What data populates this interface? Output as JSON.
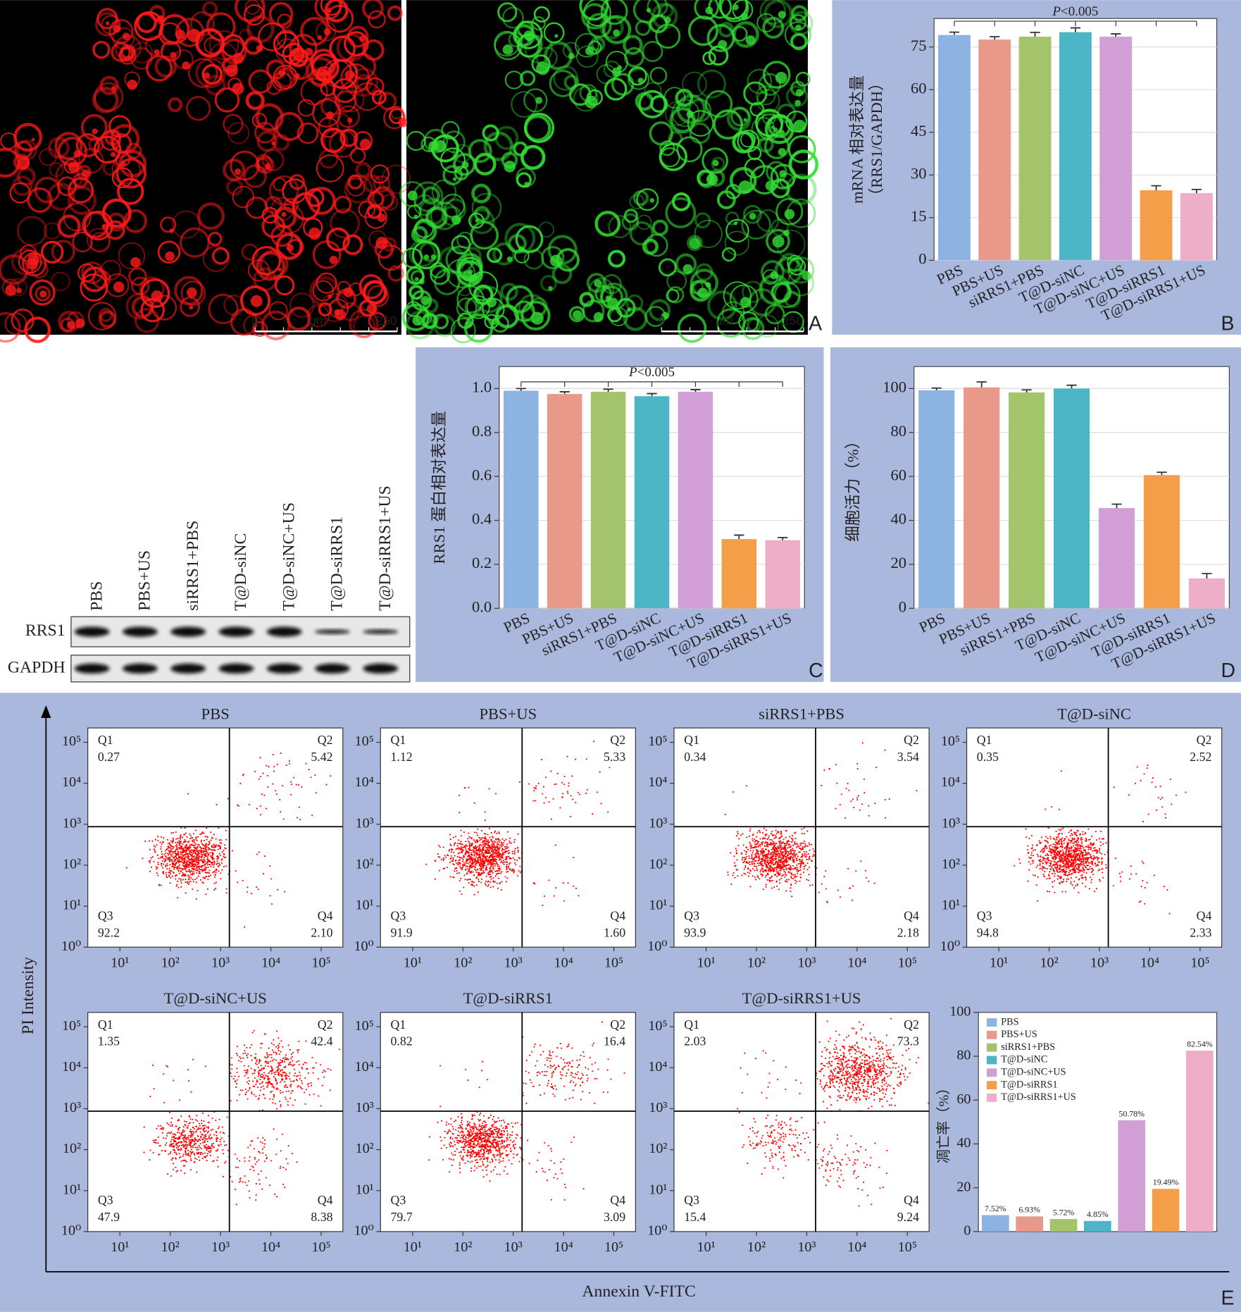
{
  "chart_data": [
    {
      "type": "bar",
      "ylabel": [
        "mRNA 相对表达量",
        "（RRS1/GAPDH）"
      ],
      "annotation": "P<0.005",
      "categories": [
        "PBS",
        "PBS+US",
        "siRRS1+PBS",
        "T@D-siNC",
        "T@D-siNC+US",
        "T@D-siRRS1",
        "T@D-siRRS1+US"
      ],
      "values": [
        79.2,
        77.6,
        78.6,
        80.2,
        78.6,
        24.6,
        23.6
      ],
      "errors": [
        1,
        1,
        1.5,
        1.5,
        1,
        1.6,
        1.3
      ],
      "colors": [
        "#8db3e2",
        "#e8998a",
        "#a3c46b",
        "#4db6c6",
        "#d19fd6",
        "#f59e49",
        "#eeaec7"
      ],
      "ylim": [
        0,
        85
      ],
      "yticks": [
        0,
        15,
        30,
        45,
        60,
        75
      ],
      "grid": true
    },
    {
      "type": "bar",
      "ylabel": [
        "RRS1 蛋白相对表达量"
      ],
      "annotation": "P<0.005",
      "categories": [
        "PBS",
        "PBS+US",
        "siRRS1+PBS",
        "T@D-siNC",
        "T@D-siNC+US",
        "T@D-siRRS1",
        "T@D-siRRS1+US"
      ],
      "values": [
        0.99,
        0.975,
        0.985,
        0.965,
        0.985,
        0.315,
        0.31
      ],
      "errors": [
        0.01,
        0.01,
        0.012,
        0.012,
        0.01,
        0.018,
        0.012
      ],
      "colors": [
        "#8db3e2",
        "#e8998a",
        "#a3c46b",
        "#4db6c6",
        "#d19fd6",
        "#f59e49",
        "#eeaec7"
      ],
      "ylim": [
        0,
        1.1
      ],
      "yticks": [
        {
          "value": 0,
          "label": "0.0"
        },
        0.2,
        0.4,
        0.6,
        0.8,
        {
          "value": 1,
          "label": "1.0"
        }
      ],
      "grid": true
    },
    {
      "type": "bar",
      "ylabel": [
        "细胞活力（%）"
      ],
      "categories": [
        "PBS",
        "PBS+US",
        "siRRS1+PBS",
        "T@D-siNC",
        "T@D-siNC+US",
        "T@D-siRRS1",
        "T@D-siRRS1+US"
      ],
      "values": [
        99.2,
        100.5,
        98.2,
        100,
        45.6,
        60.6,
        13.6
      ],
      "errors": [
        1,
        2.5,
        1.2,
        1.5,
        1.8,
        1.3,
        2.2
      ],
      "colors": [
        "#8db3e2",
        "#e8998a",
        "#a3c46b",
        "#4db6c6",
        "#d19fd6",
        "#f59e49",
        "#eeaec7"
      ],
      "ylim": [
        0,
        110
      ],
      "yticks": [
        0,
        20,
        40,
        60,
        80,
        100
      ],
      "grid": true
    },
    {
      "type": "bar",
      "ylabel": [
        "凋亡率（%）"
      ],
      "legend": "upper left",
      "categories": [
        "PBS",
        "PBS+US",
        "siRRS1+PBS",
        "T@D-siNC",
        "T@D-siNC+US",
        "T@D-siRRS1",
        "T@D-siRRS1+US"
      ],
      "values": [
        7.52,
        6.93,
        5.72,
        4.85,
        50.78,
        19.49,
        82.54
      ],
      "value_labels": [
        "7.52%",
        "6.93%",
        "5.72%",
        "4.85%",
        "50.78%",
        "19.49%",
        "82.54%"
      ],
      "colors": [
        "#8db3e2",
        "#e8998a",
        "#a3c46b",
        "#4db6c6",
        "#d19fd6",
        "#f59e49",
        "#eeaec7"
      ],
      "ylim": [
        0,
        100
      ],
      "yticks": [
        0,
        20,
        40,
        60,
        80,
        100
      ],
      "grid": false
    },
    {
      "type": "scatter",
      "title": "PBS",
      "xscale": "log",
      "yscale": "log",
      "xlim": [
        2.3,
        270000
      ],
      "ylim": [
        1,
        224000
      ],
      "gate": [
        1500,
        870
      ],
      "color": "#ff0000",
      "xticks": [
        {
          "value": 10,
          "label": "10¹"
        },
        {
          "value": 100,
          "label": "10²"
        },
        {
          "value": 1000,
          "label": "10³"
        },
        {
          "value": 10000,
          "label": "10⁴"
        },
        {
          "value": 100000,
          "label": "10⁵"
        }
      ],
      "yticks": [
        {
          "value": 1,
          "label": "10⁰"
        },
        {
          "value": 10,
          "label": "10¹"
        },
        {
          "value": 100,
          "label": "10²"
        },
        {
          "value": 1000,
          "label": "10³"
        },
        {
          "value": 10000,
          "label": "10⁴"
        },
        {
          "value": 100000,
          "label": "10⁵"
        }
      ],
      "quadrants": [
        "Q1",
        "Q2",
        "Q3",
        "Q4"
      ],
      "values": [
        0.27,
        5.42,
        92.2,
        2.1
      ],
      "value_labels": [
        "0.27",
        "5.42",
        "92.2",
        "2.10"
      ]
    },
    {
      "type": "scatter",
      "title": "PBS+US",
      "xscale": "log",
      "yscale": "log",
      "xlim": [
        2.3,
        270000
      ],
      "ylim": [
        1,
        224000
      ],
      "gate": [
        1500,
        870
      ],
      "color": "#ff0000",
      "xticks": [
        {
          "value": 10,
          "label": "10¹"
        },
        {
          "value": 100,
          "label": "10²"
        },
        {
          "value": 1000,
          "label": "10³"
        },
        {
          "value": 10000,
          "label": "10⁴"
        },
        {
          "value": 100000,
          "label": "10⁵"
        }
      ],
      "yticks": [
        {
          "value": 1,
          "label": "10⁰"
        },
        {
          "value": 10,
          "label": "10¹"
        },
        {
          "value": 100,
          "label": "10²"
        },
        {
          "value": 1000,
          "label": "10³"
        },
        {
          "value": 10000,
          "label": "10⁴"
        },
        {
          "value": 100000,
          "label": "10⁵"
        }
      ],
      "quadrants": [
        "Q1",
        "Q2",
        "Q3",
        "Q4"
      ],
      "values": [
        1.12,
        5.33,
        91.9,
        1.6
      ],
      "value_labels": [
        "1.12",
        "5.33",
        "91.9",
        "1.60"
      ]
    },
    {
      "type": "scatter",
      "title": "siRRS1+PBS",
      "xscale": "log",
      "yscale": "log",
      "xlim": [
        2.3,
        270000
      ],
      "ylim": [
        1,
        224000
      ],
      "gate": [
        1500,
        870
      ],
      "color": "#ff0000",
      "xticks": [
        {
          "value": 10,
          "label": "10¹"
        },
        {
          "value": 100,
          "label": "10²"
        },
        {
          "value": 1000,
          "label": "10³"
        },
        {
          "value": 10000,
          "label": "10⁴"
        },
        {
          "value": 100000,
          "label": "10⁵"
        }
      ],
      "yticks": [
        {
          "value": 1,
          "label": "10⁰"
        },
        {
          "value": 10,
          "label": "10¹"
        },
        {
          "value": 100,
          "label": "10²"
        },
        {
          "value": 1000,
          "label": "10³"
        },
        {
          "value": 10000,
          "label": "10⁴"
        },
        {
          "value": 100000,
          "label": "10⁵"
        }
      ],
      "quadrants": [
        "Q1",
        "Q2",
        "Q3",
        "Q4"
      ],
      "values": [
        0.34,
        3.54,
        93.9,
        2.18
      ],
      "value_labels": [
        "0.34",
        "3.54",
        "93.9",
        "2.18"
      ]
    },
    {
      "type": "scatter",
      "title": "T@D-siNC",
      "xscale": "log",
      "yscale": "log",
      "xlim": [
        2.3,
        270000
      ],
      "ylim": [
        1,
        224000
      ],
      "gate": [
        1500,
        870
      ],
      "color": "#ff0000",
      "xticks": [
        {
          "value": 10,
          "label": "10¹"
        },
        {
          "value": 100,
          "label": "10²"
        },
        {
          "value": 1000,
          "label": "10³"
        },
        {
          "value": 10000,
          "label": "10⁴"
        },
        {
          "value": 100000,
          "label": "10⁵"
        }
      ],
      "yticks": [
        {
          "value": 1,
          "label": "10⁰"
        },
        {
          "value": 10,
          "label": "10¹"
        },
        {
          "value": 100,
          "label": "10²"
        },
        {
          "value": 1000,
          "label": "10³"
        },
        {
          "value": 10000,
          "label": "10⁴"
        },
        {
          "value": 100000,
          "label": "10⁵"
        }
      ],
      "quadrants": [
        "Q1",
        "Q2",
        "Q3",
        "Q4"
      ],
      "values": [
        0.35,
        2.52,
        94.8,
        2.33
      ],
      "value_labels": [
        "0.35",
        "2.52",
        "94.8",
        "2.33"
      ]
    },
    {
      "type": "scatter",
      "title": "T@D-siNC+US",
      "xscale": "log",
      "yscale": "log",
      "xlim": [
        2.3,
        270000
      ],
      "ylim": [
        1,
        224000
      ],
      "gate": [
        1500,
        870
      ],
      "color": "#ff0000",
      "xticks": [
        {
          "value": 10,
          "label": "10¹"
        },
        {
          "value": 100,
          "label": "10²"
        },
        {
          "value": 1000,
          "label": "10³"
        },
        {
          "value": 10000,
          "label": "10⁴"
        },
        {
          "value": 100000,
          "label": "10⁵"
        }
      ],
      "yticks": [
        {
          "value": 1,
          "label": "10⁰"
        },
        {
          "value": 10,
          "label": "10¹"
        },
        {
          "value": 100,
          "label": "10²"
        },
        {
          "value": 1000,
          "label": "10³"
        },
        {
          "value": 10000,
          "label": "10⁴"
        },
        {
          "value": 100000,
          "label": "10⁵"
        }
      ],
      "quadrants": [
        "Q1",
        "Q2",
        "Q3",
        "Q4"
      ],
      "values": [
        1.35,
        42.4,
        47.9,
        8.38
      ],
      "value_labels": [
        "1.35",
        "42.4",
        "47.9",
        "8.38"
      ]
    },
    {
      "type": "scatter",
      "title": "T@D-siRRS1",
      "xscale": "log",
      "yscale": "log",
      "xlim": [
        2.3,
        270000
      ],
      "ylim": [
        1,
        224000
      ],
      "gate": [
        1500,
        870
      ],
      "color": "#ff0000",
      "xticks": [
        {
          "value": 10,
          "label": "10¹"
        },
        {
          "value": 100,
          "label": "10²"
        },
        {
          "value": 1000,
          "label": "10³"
        },
        {
          "value": 10000,
          "label": "10⁴"
        },
        {
          "value": 100000,
          "label": "10⁵"
        }
      ],
      "yticks": [
        {
          "value": 1,
          "label": "10⁰"
        },
        {
          "value": 10,
          "label": "10¹"
        },
        {
          "value": 100,
          "label": "10²"
        },
        {
          "value": 1000,
          "label": "10³"
        },
        {
          "value": 10000,
          "label": "10⁴"
        },
        {
          "value": 100000,
          "label": "10⁵"
        }
      ],
      "quadrants": [
        "Q1",
        "Q2",
        "Q3",
        "Q4"
      ],
      "values": [
        0.82,
        16.4,
        79.7,
        3.09
      ],
      "value_labels": [
        "0.82",
        "16.4",
        "79.7",
        "3.09"
      ]
    },
    {
      "type": "scatter",
      "title": "T@D-siRRS1+US",
      "xscale": "log",
      "yscale": "log",
      "xlim": [
        2.3,
        270000
      ],
      "ylim": [
        1,
        224000
      ],
      "gate": [
        1500,
        870
      ],
      "color": "#ff0000",
      "xticks": [
        {
          "value": 10,
          "label": "10¹"
        },
        {
          "value": 100,
          "label": "10²"
        },
        {
          "value": 1000,
          "label": "10³"
        },
        {
          "value": 10000,
          "label": "10⁴"
        },
        {
          "value": 100000,
          "label": "10⁵"
        }
      ],
      "yticks": [
        {
          "value": 1,
          "label": "10⁰"
        },
        {
          "value": 10,
          "label": "10¹"
        },
        {
          "value": 100,
          "label": "10²"
        },
        {
          "value": 1000,
          "label": "10³"
        },
        {
          "value": 10000,
          "label": "10⁴"
        },
        {
          "value": 100000,
          "label": "10⁵"
        }
      ],
      "quadrants": [
        "Q1",
        "Q2",
        "Q3",
        "Q4"
      ],
      "values": [
        2.03,
        73.3,
        15.4,
        9.24
      ],
      "value_labels": [
        "2.03",
        "73.3",
        "15.4",
        "9.24"
      ]
    }
  ],
  "flow_axes": {
    "x_label": "Annexin V-FITC",
    "y_label": "PI Intensity"
  },
  "images": {
    "scale_bar": [
      "0",
      "μm",
      "250"
    ]
  },
  "western_blot": {
    "lanes": [
      "PBS",
      "PBS+US",
      "siRRS1+PBS",
      "T@D-siNC",
      "T@D-siNC+US",
      "T@D-siRRS1",
      "T@D-siRRS1+US"
    ],
    "rows": [
      "RRS1",
      "GAPDH"
    ]
  },
  "panel_labels": [
    "A",
    "B",
    "C",
    "D",
    "E"
  ]
}
